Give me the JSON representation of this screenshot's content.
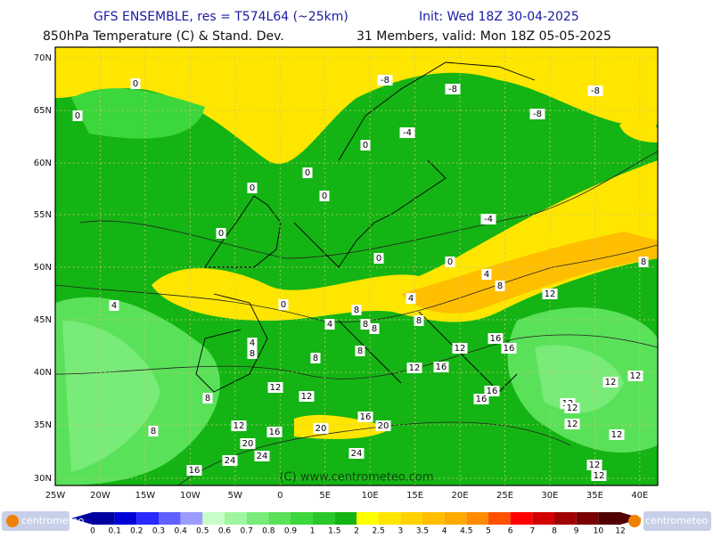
{
  "header": {
    "model": "GFS ENSEMBLE, res = T574L64 (~25km)",
    "init": "Init: Wed 18Z 30-04-2025",
    "field": "850hPa Temperature (C) & Stand. Dev.",
    "valid": "31 Members, valid: Mon 18Z 05-05-2025"
  },
  "map": {
    "lat_labels": [
      "70N",
      "65N",
      "60N",
      "55N",
      "50N",
      "45N",
      "40N",
      "35N",
      "30N"
    ],
    "lon_labels": [
      "25W",
      "20W",
      "15W",
      "10W",
      "5W",
      "0",
      "5E",
      "10E",
      "15E",
      "20E",
      "25E",
      "30E",
      "35E",
      "40E"
    ],
    "contour_labels": [
      "-8",
      "-8",
      "-8",
      "-8",
      "-4",
      "0",
      "0",
      "0",
      "0",
      "0",
      "0",
      "-4",
      "0",
      "0",
      "0",
      "8",
      "4",
      "8",
      "12",
      "4",
      "0",
      "4",
      "8",
      "4",
      "8",
      "8",
      "8",
      "16",
      "4",
      "8",
      "12",
      "16",
      "8",
      "8",
      "12",
      "16",
      "12",
      "12",
      "8",
      "12",
      "12",
      "16",
      "16",
      "12",
      "12",
      "16",
      "8",
      "12",
      "20",
      "20",
      "12",
      "16",
      "12",
      "20",
      "24",
      "24",
      "24",
      "16",
      "12",
      "12"
    ],
    "watermark": "(C) www.centrometeo.com"
  },
  "legend": {
    "labels": [
      "0",
      "0.1",
      "0.2",
      "0.3",
      "0.4",
      "0.5",
      "0.6",
      "0.7",
      "0.8",
      "0.9",
      "1",
      "1.5",
      "2",
      "2.5",
      "3",
      "3.5",
      "4",
      "4.5",
      "5",
      "6",
      "7",
      "8",
      "9",
      "10",
      "12"
    ],
    "colors": [
      "#0000a0",
      "#0000d8",
      "#2828ff",
      "#6060ff",
      "#9c9cff",
      "#c8ffc8",
      "#a0f5a0",
      "#78eb78",
      "#5ae15a",
      "#3cd73c",
      "#28c828",
      "#14b414",
      "#ffff00",
      "#ffe600",
      "#ffd200",
      "#ffbe00",
      "#ffaa00",
      "#ff8c00",
      "#ff5000",
      "#ff0000",
      "#d20000",
      "#a00000",
      "#780000",
      "#500000"
    ]
  },
  "logo": {
    "left": "centrometeo",
    "right": "centrometeo"
  }
}
